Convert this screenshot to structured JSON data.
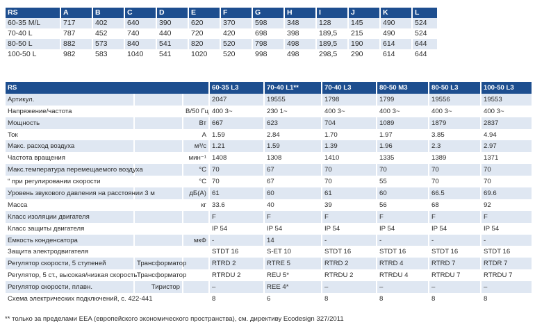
{
  "dimensions": {
    "header": [
      "RS",
      "A",
      "B",
      "C",
      "D",
      "E",
      "F",
      "G",
      "H",
      "I",
      "J",
      "K",
      "L"
    ],
    "rows": [
      [
        "60-35 M/L",
        "717",
        "402",
        "640",
        "390",
        "620",
        "370",
        "598",
        "348",
        "128",
        "145",
        "490",
        "524"
      ],
      [
        "70-40 L",
        "787",
        "452",
        "740",
        "440",
        "720",
        "420",
        "698",
        "398",
        "189,5",
        "215",
        "490",
        "524"
      ],
      [
        "80-50 L",
        "882",
        "573",
        "840",
        "541",
        "820",
        "520",
        "798",
        "498",
        "189,5",
        "190",
        "614",
        "644"
      ],
      [
        "100-50 L",
        "982",
        "583",
        "1040",
        "541",
        "1020",
        "520",
        "998",
        "498",
        "298,5",
        "290",
        "614",
        "644"
      ]
    ]
  },
  "specs": {
    "header": {
      "label": "RS",
      "models": [
        "60-35 L3",
        "70-40 L1**",
        "70-40 L3",
        "80-50 M3",
        "80-50 L3",
        "100-50 L3"
      ]
    },
    "rows": [
      {
        "label": "Артикул.",
        "sub": "",
        "unit": "",
        "values": [
          "2047",
          "19555",
          "1798",
          "1799",
          "19556",
          "19553"
        ]
      },
      {
        "label": "Напряжение/частота",
        "sub": "",
        "unit": "В/50 Гц",
        "values": [
          "400 3~",
          "230 1~",
          "400 3~",
          "400 3~",
          "400 3~",
          "400 3~"
        ]
      },
      {
        "label": "Мощность",
        "sub": "",
        "unit": "Вт",
        "values": [
          "667",
          "623",
          "704",
          "1089",
          "1879",
          "2837"
        ]
      },
      {
        "label": "Ток",
        "sub": "",
        "unit": "А",
        "values": [
          "1.59",
          "2.84",
          "1.70",
          "1.97",
          "3.85",
          "4.94"
        ]
      },
      {
        "label": "Макс. расход воздуха",
        "sub": "",
        "unit": "м³/с",
        "values": [
          "1.21",
          "1.59",
          "1.39",
          "1.96",
          "2.3",
          "2.97"
        ]
      },
      {
        "label": "Частота вращения",
        "sub": "",
        "unit": "мин⁻¹",
        "values": [
          "1408",
          "1308",
          "1410",
          "1335",
          "1389",
          "1371"
        ]
      },
      {
        "label": "Макс.температура перемещаемого воздуха",
        "sub": "",
        "unit": "°С",
        "values": [
          "70",
          "67",
          "70",
          "70",
          "70",
          "70"
        ]
      },
      {
        "label": "“ при регулировании скорости",
        "sub": "",
        "unit": "°С",
        "values": [
          "70",
          "67",
          "70",
          "55",
          "70",
          "70"
        ]
      },
      {
        "label": "Уровень звукового давления на расстоянии 3 м",
        "sub": "",
        "unit": "дБ(А)",
        "values": [
          "61",
          "60",
          "61",
          "60",
          "66.5",
          "69.6"
        ]
      },
      {
        "label": "Масса",
        "sub": "",
        "unit": "кг",
        "values": [
          "33.6",
          "40",
          "39",
          "56",
          "68",
          "92"
        ]
      },
      {
        "label": "Класс изоляции двигателя",
        "sub": "",
        "unit": "",
        "values": [
          "F",
          "F",
          "F",
          "F",
          "F",
          "F"
        ]
      },
      {
        "label": "Класс защиты двигателя",
        "sub": "",
        "unit": "",
        "values": [
          "IP 54",
          "IP 54",
          "IP 54",
          "IP 54",
          "IP 54",
          "IP 54"
        ]
      },
      {
        "label": "Емкость конденсатора",
        "sub": "",
        "unit": "мкФ",
        "values": [
          "-",
          "14",
          "-",
          "-",
          "-",
          "-"
        ]
      },
      {
        "label": "Защита электродвигателя",
        "sub": "",
        "unit": "",
        "values": [
          "STDT 16",
          "S-ET 10",
          "STDT 16",
          "STDT 16",
          "STDT 16",
          "STDT 16"
        ]
      },
      {
        "label": "Регулятор скорости, 5 ступеней",
        "sub": "Трансформатор",
        "unit": "",
        "values": [
          "RTRD 2",
          "RTRE 5",
          "RTRD 2",
          "RTRD 4",
          "RTRD 7",
          "RTDR 7"
        ]
      },
      {
        "label": "Регулятор, 5 ст., высокая/низкая скорость",
        "sub": "Трансформатор",
        "unit": "",
        "values": [
          "RTRDU 2",
          "REU 5*",
          "RTRDU 2",
          "RTRDU 4",
          "RTRDU 7",
          "RTRDU 7"
        ]
      },
      {
        "label": "Регулятор скорости, плавн.",
        "sub": "Тиристор",
        "unit": "",
        "values": [
          "–",
          "REE 4*",
          "–",
          "–",
          "–",
          "–"
        ]
      },
      {
        "label": "Схема электрических подключений, с. 422-441",
        "sub": "",
        "unit": "",
        "values": [
          "8",
          "6",
          "8",
          "8",
          "8",
          "8"
        ]
      }
    ]
  },
  "footnote": "** только за пределами EEA (европейского экономического пространства), см. директиву Ecodesign 327/2011",
  "colors": {
    "header_bg": "#1d4e8f",
    "band_bg": "#dfe7f2"
  }
}
